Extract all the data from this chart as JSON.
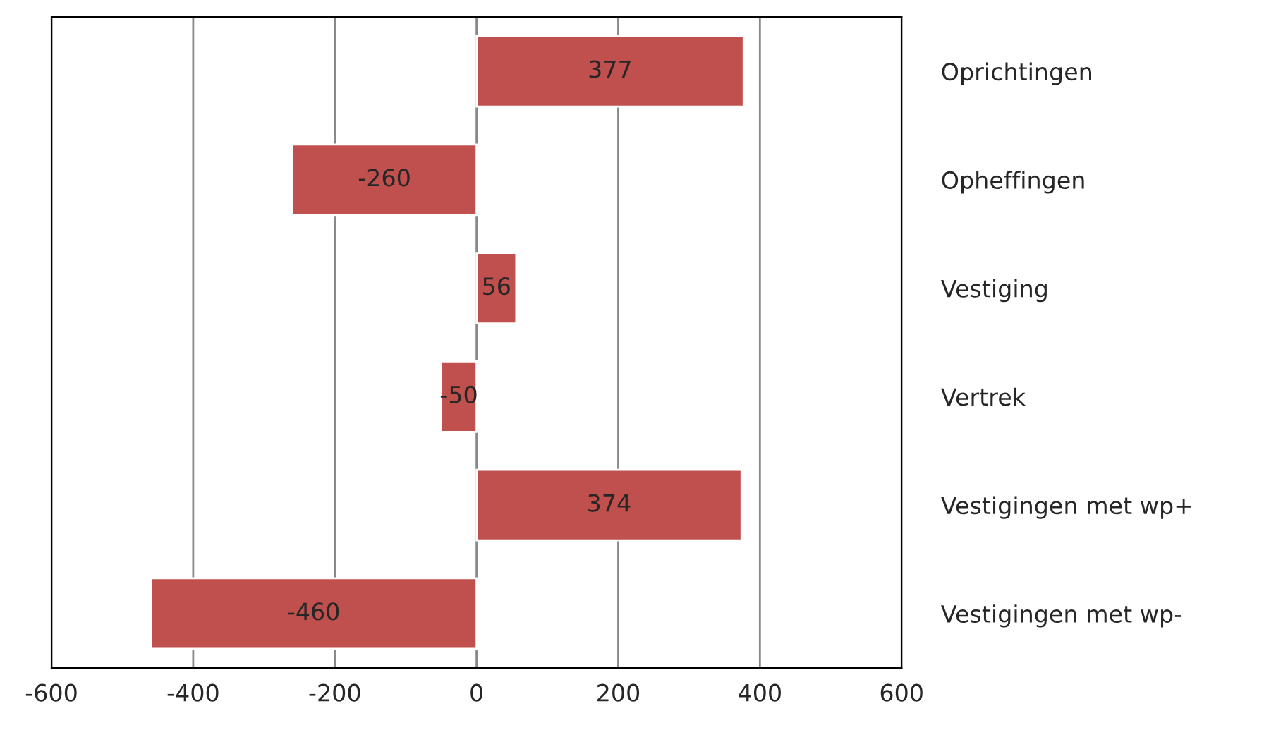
{
  "chart_data": {
    "type": "bar",
    "orientation": "horizontal",
    "categories": [
      "Oprichtingen",
      "Opheffingen",
      "Vestiging",
      "Vertrek",
      "Vestigingen met wp+",
      "Vestigingen met wp-"
    ],
    "values": [
      377,
      -260,
      56,
      -50,
      374,
      -460
    ],
    "color": "#c0504d",
    "data_labels": true,
    "xlim": [
      -600,
      600
    ],
    "xticks": [
      -600,
      -400,
      -200,
      0,
      200,
      400,
      600
    ],
    "grid": "x",
    "legend": false
  }
}
